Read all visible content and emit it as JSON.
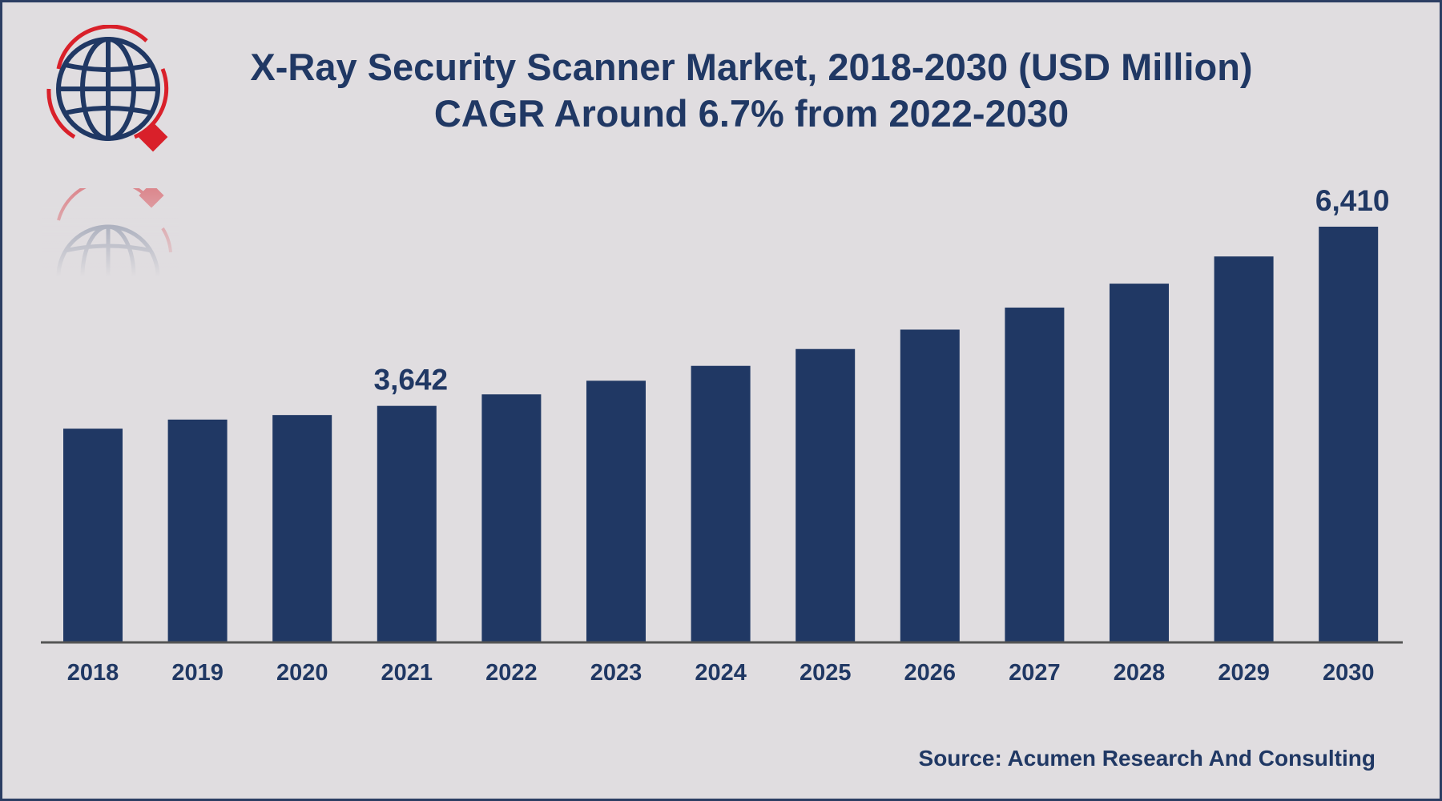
{
  "title_line1": "X-Ray Security Scanner Market, 2018-2030 (USD Million)",
  "title_line2": "CAGR Around 6.7% from 2022-2030",
  "source": "Source: Acumen Research And Consulting",
  "logo": {
    "icon": "globe-magnifier-logo-icon"
  },
  "colors": {
    "bar": "#203864",
    "background": "#e0dde0",
    "axis": "#555555",
    "text": "#203864",
    "logo_red": "#d9202a"
  },
  "chart_data": {
    "type": "bar",
    "title": "X-Ray Security Scanner Market, 2018-2030 (USD Million)",
    "subtitle": "CAGR Around 6.7% from 2022-2030",
    "xlabel": "",
    "ylabel": "",
    "categories": [
      "2018",
      "2019",
      "2020",
      "2021",
      "2022",
      "2023",
      "2024",
      "2025",
      "2026",
      "2027",
      "2028",
      "2029",
      "2030"
    ],
    "values": [
      3290,
      3430,
      3500,
      3642,
      3820,
      4030,
      4260,
      4520,
      4820,
      5160,
      5530,
      5950,
      6410
    ],
    "data_labels": [
      {
        "category": "2021",
        "text": "3,642"
      },
      {
        "category": "2030",
        "text": "6,410"
      }
    ],
    "ylim": [
      0,
      6410
    ],
    "grid": false,
    "legend": "none"
  }
}
